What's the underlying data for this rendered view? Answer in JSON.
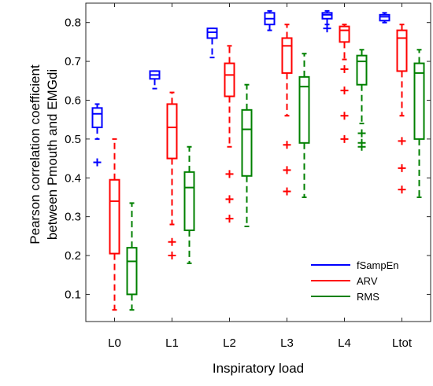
{
  "chart_data": {
    "type": "box",
    "title": "",
    "xlabel": "Inspiratory load",
    "ylabel_lines": [
      "Pearson correlation coefficient",
      "between Pmouth and EMGdi"
    ],
    "categories": [
      "L0",
      "L1",
      "L2",
      "L3",
      "L4",
      "Ltot"
    ],
    "ylim": [
      0.03,
      0.85
    ],
    "yticks": [
      "0.1",
      "0.2",
      "0.3",
      "0.4",
      "0.5",
      "0.6",
      "0.7",
      "0.8"
    ],
    "grid": false,
    "legend_position": "bottom-right",
    "series": [
      {
        "name": "fSampEn",
        "color": "#0000ff",
        "boxes": [
          {
            "whisker_low": 0.5,
            "q1": 0.53,
            "median": 0.565,
            "q3": 0.58,
            "whisker_high": 0.59,
            "outliers": [
              0.44
            ]
          },
          {
            "whisker_low": 0.63,
            "q1": 0.655,
            "median": 0.665,
            "q3": 0.675,
            "whisker_high": 0.675,
            "outliers": []
          },
          {
            "whisker_low": 0.71,
            "q1": 0.76,
            "median": 0.775,
            "q3": 0.785,
            "whisker_high": 0.785,
            "outliers": []
          },
          {
            "whisker_low": 0.78,
            "q1": 0.795,
            "median": 0.81,
            "q3": 0.825,
            "whisker_high": 0.83,
            "outliers": []
          },
          {
            "whisker_low": 0.795,
            "q1": 0.81,
            "median": 0.82,
            "q3": 0.825,
            "whisker_high": 0.83,
            "outliers": [
              0.785
            ]
          },
          {
            "whisker_low": 0.8,
            "q1": 0.805,
            "median": 0.815,
            "q3": 0.82,
            "whisker_high": 0.825,
            "outliers": []
          }
        ]
      },
      {
        "name": "ARV",
        "color": "#ff0000",
        "boxes": [
          {
            "whisker_low": 0.06,
            "q1": 0.205,
            "median": 0.34,
            "q3": 0.395,
            "whisker_high": 0.5,
            "outliers": []
          },
          {
            "whisker_low": 0.28,
            "q1": 0.45,
            "median": 0.53,
            "q3": 0.59,
            "whisker_high": 0.62,
            "outliers": [
              0.235,
              0.2
            ]
          },
          {
            "whisker_low": 0.48,
            "q1": 0.61,
            "median": 0.665,
            "q3": 0.695,
            "whisker_high": 0.74,
            "outliers": [
              0.41,
              0.345,
              0.295
            ]
          },
          {
            "whisker_low": 0.56,
            "q1": 0.67,
            "median": 0.74,
            "q3": 0.76,
            "whisker_high": 0.795,
            "outliers": [
              0.485,
              0.42,
              0.365
            ]
          },
          {
            "whisker_low": 0.705,
            "q1": 0.75,
            "median": 0.78,
            "q3": 0.79,
            "whisker_high": 0.795,
            "outliers": [
              0.68,
              0.625,
              0.56,
              0.5
            ]
          },
          {
            "whisker_low": 0.56,
            "q1": 0.675,
            "median": 0.76,
            "q3": 0.78,
            "whisker_high": 0.795,
            "outliers": [
              0.495,
              0.425,
              0.37
            ]
          }
        ]
      },
      {
        "name": "RMS",
        "color": "#008000",
        "boxes": [
          {
            "whisker_low": 0.06,
            "q1": 0.1,
            "median": 0.185,
            "q3": 0.22,
            "whisker_high": 0.335,
            "outliers": []
          },
          {
            "whisker_low": 0.18,
            "q1": 0.265,
            "median": 0.375,
            "q3": 0.415,
            "whisker_high": 0.48,
            "outliers": []
          },
          {
            "whisker_low": 0.275,
            "q1": 0.405,
            "median": 0.525,
            "q3": 0.575,
            "whisker_high": 0.64,
            "outliers": []
          },
          {
            "whisker_low": 0.35,
            "q1": 0.49,
            "median": 0.635,
            "q3": 0.66,
            "whisker_high": 0.72,
            "outliers": []
          },
          {
            "whisker_low": 0.54,
            "q1": 0.64,
            "median": 0.7,
            "q3": 0.715,
            "whisker_high": 0.73,
            "outliers": [
              0.515,
              0.49,
              0.48
            ]
          },
          {
            "whisker_low": 0.35,
            "q1": 0.5,
            "median": 0.67,
            "q3": 0.695,
            "whisker_high": 0.73,
            "outliers": []
          }
        ]
      }
    ]
  }
}
